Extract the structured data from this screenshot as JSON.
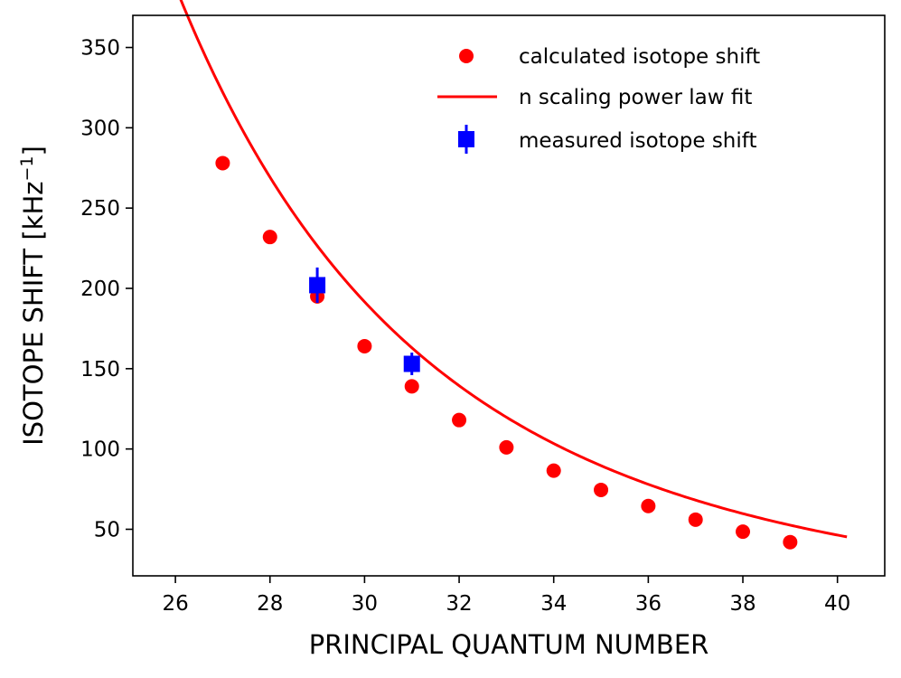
{
  "chart_data": {
    "type": "scatter",
    "xlabel": "PRINCIPAL QUANTUM NUMBER",
    "ylabel_main": "ISOTOPE SHIFT [kHz",
    "ylabel_sup": "−1",
    "ylabel_close": "]",
    "xlim": [
      25.1,
      41.0
    ],
    "ylim": [
      21,
      370
    ],
    "x_ticks": [
      26,
      28,
      30,
      32,
      34,
      36,
      38,
      40
    ],
    "y_ticks": [
      50,
      100,
      150,
      200,
      250,
      300,
      350
    ],
    "grid": false,
    "legend_position": "top-right",
    "series": [
      {
        "name": "calculated isotope shift",
        "kind": "points",
        "marker": "circle",
        "color": "#ff0000",
        "x": [
          27,
          28,
          29,
          30,
          31,
          32,
          33,
          34,
          35,
          36,
          37,
          38,
          39
        ],
        "y": [
          278,
          232,
          195,
          164,
          139,
          118,
          101,
          86.5,
          74.5,
          64.5,
          56,
          48.5,
          42
        ]
      },
      {
        "name": "n scaling power law fit",
        "kind": "line",
        "color": "#ff0000",
        "model": "A*n^p",
        "A": 3670000000.0,
        "p": -4.93,
        "x_range": [
          25.8,
          40.2
        ]
      },
      {
        "name": "measured isotope shift",
        "kind": "errorbar",
        "marker": "square",
        "color": "#0000ff",
        "x": [
          29,
          31
        ],
        "y": [
          202,
          153
        ],
        "yerr": [
          11,
          7
        ]
      }
    ]
  }
}
